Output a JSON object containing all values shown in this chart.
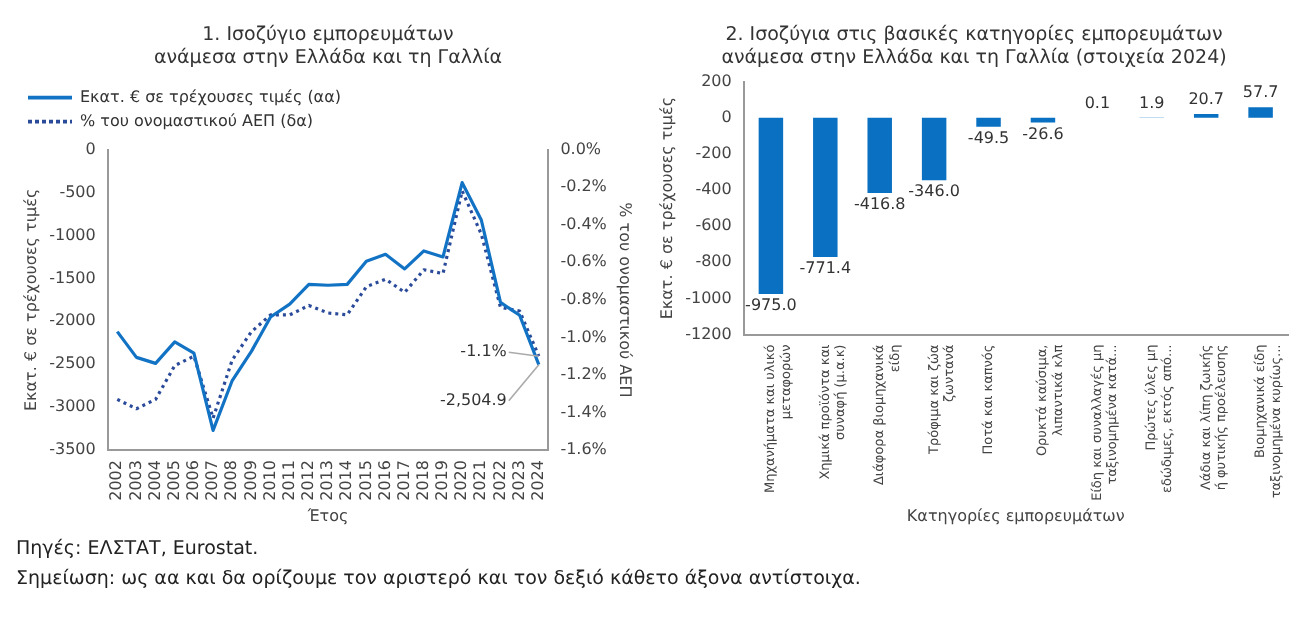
{
  "chart_data": [
    {
      "type": "line",
      "title": "1. Ισοζύγιο εμπορευμάτων\nανάμεσα στην Ελλάδα και τη Γαλλία",
      "xlabel": "Έτος",
      "ylabel": "Εκατ. € σε τρέχουσες τιμές",
      "y2label": "% του ονομαστικού ΑΕΠ",
      "categories": [
        "2002",
        "2003",
        "2004",
        "2005",
        "2006",
        "2007",
        "2008",
        "2009",
        "2010",
        "2011",
        "2012",
        "2013",
        "2014",
        "2015",
        "2016",
        "2017",
        "2018",
        "2019",
        "2020",
        "2021",
        "2022",
        "2023",
        "2024"
      ],
      "series": [
        {
          "name": "Εκατ. € σε τρέχουσες τιμές (αα)",
          "color": "#1272c4",
          "line_style": "solid",
          "values": [
            -2120,
            -2420,
            -2490,
            -2240,
            -2370,
            -3270,
            -2690,
            -2350,
            -1950,
            -1800,
            -1570,
            -1580,
            -1570,
            -1300,
            -1220,
            -1390,
            -1180,
            -1250,
            -385,
            -820,
            -1780,
            -1930,
            -2504.9
          ],
          "value_labels": [
            null,
            null,
            null,
            null,
            null,
            null,
            null,
            null,
            null,
            null,
            null,
            null,
            null,
            null,
            null,
            null,
            null,
            null,
            null,
            null,
            null,
            null,
            "-2,504.9"
          ]
        },
        {
          "name": "% του ονομαστικού ΑΕΠ (δα)",
          "color": "#2a4a9a",
          "line_style": "dotted",
          "axis": "y2",
          "values": [
            -1.33,
            -1.38,
            -1.33,
            -1.15,
            -1.1,
            -1.43,
            -1.12,
            -0.97,
            -0.88,
            -0.88,
            -0.83,
            -0.87,
            -0.88,
            -0.73,
            -0.69,
            -0.76,
            -0.64,
            -0.66,
            -0.22,
            -0.45,
            -0.84,
            -0.86,
            -1.1
          ],
          "value_labels": [
            null,
            null,
            null,
            null,
            null,
            null,
            null,
            null,
            null,
            null,
            null,
            null,
            null,
            null,
            null,
            null,
            null,
            null,
            null,
            null,
            null,
            null,
            "-1.1%"
          ]
        }
      ],
      "ylim": [
        -3500,
        0
      ],
      "yticks": [
        -3500,
        -3000,
        -2500,
        -2000,
        -1500,
        -1000,
        -500,
        0
      ],
      "y2lim": [
        -1.6,
        0
      ],
      "y2ticks": [
        {
          "value": -1.6,
          "label": "-1.6%"
        },
        {
          "value": -1.4,
          "label": "-1.4%"
        },
        {
          "value": -1.2,
          "label": "-1.2%"
        },
        {
          "value": -1.0,
          "label": "-1.0%"
        },
        {
          "value": -0.8,
          "label": "-0.8%"
        },
        {
          "value": -0.6,
          "label": "-0.6%"
        },
        {
          "value": -0.4,
          "label": "-0.4%"
        },
        {
          "value": -0.2,
          "label": "-0.2%"
        },
        {
          "value": 0,
          "label": "0.0%"
        }
      ],
      "grid": false,
      "legend": "top left",
      "marker": "none",
      "annotations": [
        "Πηγές: ΕΛΣΤΑΤ, Eurostat.",
        "Σημείωση: ως αα και δα ορίζουμε τον αριστερό και τον δεξιό κάθετο άξονα αντίστοιχα."
      ]
    },
    {
      "type": "bar",
      "title": "2. Ισοζύγια στις βασικές κατηγορίες εμπορευμάτων\nανάμεσα στην Ελλάδα και τη Γαλλία (στοιχεία 2024)",
      "xlabel": "Κατηγορίες εμπορευμάτων",
      "ylabel": "Εκατ. € σε τρέχουσες τιμές",
      "categories": [
        "Μηχανήματα και υλικό μεταφορών",
        "Χημικά προϊόντα και συναφή (μ.α.κ)",
        "Διάφορα βιομηχανικά είδη",
        "Τρόφιμα και ζώα ζωντανά",
        "Ποτά και καπνός",
        "Ορυκτά καύσιμα, λιπαντικά κλπ",
        "Είδη και συναλλαγές μη ταξινομημένα κατά...",
        "Πρώτες ύλες μη εδώδιμες, εκτός από...",
        "Λάδια και λίπη ζωικής ή φυτικής προέλευσης",
        "Βιομηχανικά είδη ταξινομημένα κυρίως..."
      ],
      "values": [
        -975.0,
        -771.4,
        -416.8,
        -346.0,
        -49.5,
        -26.6,
        0.1,
        1.9,
        20.7,
        57.7
      ],
      "value_labels": [
        "-975.0",
        "-771.4",
        "-416.8",
        "-346.0",
        "-49.5",
        "-26.6",
        "0.1",
        "1.9",
        "20.7",
        "57.7"
      ],
      "color": "#0a70c2",
      "ylim": [
        -1200,
        200
      ],
      "yticks": [
        -1200,
        -1000,
        -800,
        -600,
        -400,
        -200,
        0,
        200
      ],
      "grid": false,
      "legend": false
    }
  ]
}
